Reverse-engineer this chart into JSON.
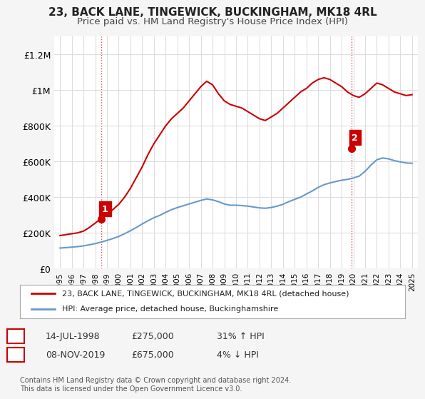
{
  "title": "23, BACK LANE, TINGEWICK, BUCKINGHAM, MK18 4RL",
  "subtitle": "Price paid vs. HM Land Registry's House Price Index (HPI)",
  "legend_line1": "23, BACK LANE, TINGEWICK, BUCKINGHAM, MK18 4RL (detached house)",
  "legend_line2": "HPI: Average price, detached house, Buckinghamshire",
  "footer": "Contains HM Land Registry data © Crown copyright and database right 2024.\nThis data is licensed under the Open Government Licence v3.0.",
  "sale1_label": "1",
  "sale1_date": "14-JUL-1998",
  "sale1_price": "£275,000",
  "sale1_hpi": "31% ↑ HPI",
  "sale2_label": "2",
  "sale2_date": "08-NOV-2019",
  "sale2_price": "£675,000",
  "sale2_hpi": "4% ↓ HPI",
  "red_color": "#cc0000",
  "blue_color": "#6699cc",
  "marker_box_color": "#cc0000",
  "xlim_left": 1994.5,
  "xlim_right": 2025.5,
  "ylim_bottom": 0,
  "ylim_top": 1300000,
  "red_years": [
    1995,
    1995.5,
    1996,
    1996.5,
    1997,
    1997.5,
    1998,
    1998.5,
    1999,
    1999.5,
    2000,
    2000.5,
    2001,
    2001.5,
    2002,
    2002.5,
    2003,
    2003.5,
    2004,
    2004.5,
    2005,
    2005.5,
    2006,
    2006.5,
    2007,
    2007.5,
    2008,
    2008.5,
    2009,
    2009.5,
    2010,
    2010.5,
    2011,
    2011.5,
    2012,
    2012.5,
    2013,
    2013.5,
    2014,
    2014.5,
    2015,
    2015.5,
    2016,
    2016.5,
    2017,
    2017.5,
    2018,
    2018.5,
    2019,
    2019.5,
    2020,
    2020.5,
    2021,
    2021.5,
    2022,
    2022.5,
    2023,
    2023.5,
    2024,
    2024.5,
    2025
  ],
  "red_values": [
    185000,
    190000,
    195000,
    200000,
    210000,
    230000,
    255000,
    280000,
    310000,
    330000,
    360000,
    400000,
    450000,
    510000,
    570000,
    640000,
    700000,
    750000,
    800000,
    840000,
    870000,
    900000,
    940000,
    980000,
    1020000,
    1050000,
    1030000,
    980000,
    940000,
    920000,
    910000,
    900000,
    880000,
    860000,
    840000,
    830000,
    850000,
    870000,
    900000,
    930000,
    960000,
    990000,
    1010000,
    1040000,
    1060000,
    1070000,
    1060000,
    1040000,
    1020000,
    990000,
    970000,
    960000,
    980000,
    1010000,
    1040000,
    1030000,
    1010000,
    990000,
    980000,
    970000,
    975000
  ],
  "blue_years": [
    1995,
    1995.5,
    1996,
    1996.5,
    1997,
    1997.5,
    1998,
    1998.5,
    1999,
    1999.5,
    2000,
    2000.5,
    2001,
    2001.5,
    2002,
    2002.5,
    2003,
    2003.5,
    2004,
    2004.5,
    2005,
    2005.5,
    2006,
    2006.5,
    2007,
    2007.5,
    2008,
    2008.5,
    2009,
    2009.5,
    2010,
    2010.5,
    2011,
    2011.5,
    2012,
    2012.5,
    2013,
    2013.5,
    2014,
    2014.5,
    2015,
    2015.5,
    2016,
    2016.5,
    2017,
    2017.5,
    2018,
    2018.5,
    2019,
    2019.5,
    2020,
    2020.5,
    2021,
    2021.5,
    2022,
    2022.5,
    2023,
    2023.5,
    2024,
    2024.5,
    2025
  ],
  "blue_values": [
    115000,
    117000,
    120000,
    123000,
    127000,
    133000,
    140000,
    148000,
    158000,
    168000,
    180000,
    195000,
    212000,
    230000,
    250000,
    268000,
    285000,
    298000,
    315000,
    330000,
    342000,
    352000,
    362000,
    372000,
    382000,
    390000,
    385000,
    375000,
    362000,
    355000,
    355000,
    353000,
    350000,
    345000,
    340000,
    338000,
    342000,
    350000,
    360000,
    375000,
    388000,
    400000,
    418000,
    435000,
    455000,
    470000,
    480000,
    488000,
    495000,
    500000,
    508000,
    518000,
    545000,
    580000,
    610000,
    620000,
    615000,
    605000,
    598000,
    592000,
    590000
  ],
  "sale1_x": 1998.54,
  "sale1_y": 275000,
  "sale2_x": 2019.84,
  "sale2_y": 675000,
  "yticks": [
    0,
    200000,
    400000,
    600000,
    800000,
    1000000,
    1200000
  ],
  "ytick_labels": [
    "£0",
    "£200K",
    "£400K",
    "£600K",
    "£800K",
    "£1M",
    "£1.2M"
  ],
  "xticks": [
    1995,
    1996,
    1997,
    1998,
    1999,
    2000,
    2001,
    2002,
    2003,
    2004,
    2005,
    2006,
    2007,
    2008,
    2009,
    2010,
    2011,
    2012,
    2013,
    2014,
    2015,
    2016,
    2017,
    2018,
    2019,
    2020,
    2021,
    2022,
    2023,
    2024,
    2025
  ],
  "bg_color": "#f5f5f5",
  "plot_bg_color": "#ffffff",
  "grid_color": "#dddddd"
}
